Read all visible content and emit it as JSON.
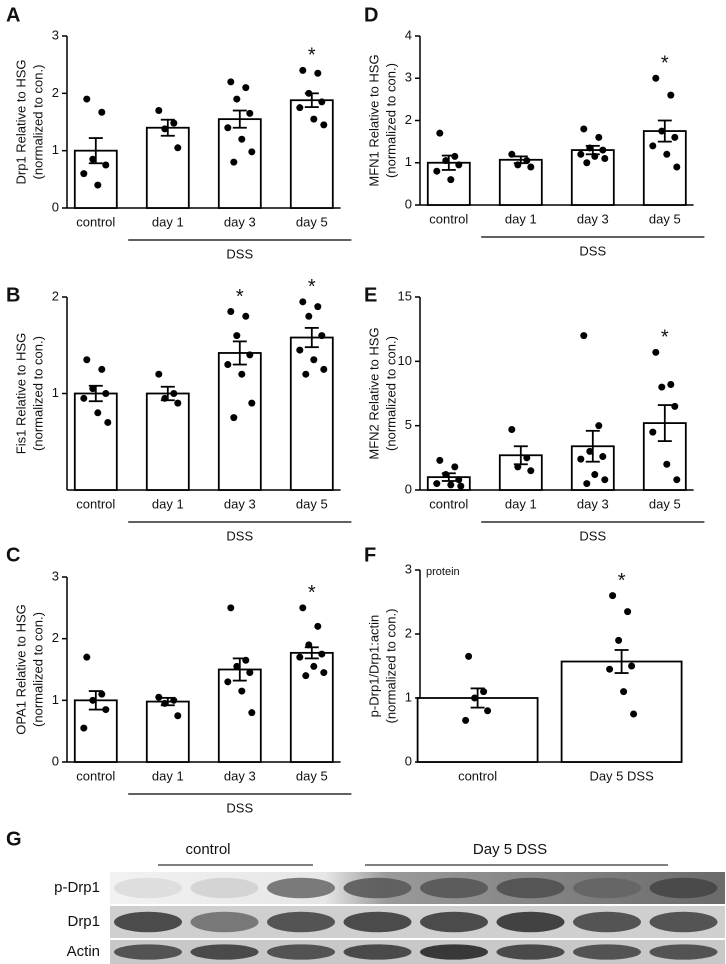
{
  "chart_data": [
    {
      "panel": "A",
      "type": "bar",
      "ylabel": [
        "Drp1 Relative to HSG",
        "(normalized to con.)"
      ],
      "categories": [
        "control",
        "day 1",
        "day 3",
        "day 5"
      ],
      "values": [
        1.0,
        1.4,
        1.55,
        1.88
      ],
      "errors": [
        0.22,
        0.14,
        0.15,
        0.12
      ],
      "points": [
        [
          1.9,
          1.67,
          0.85,
          0.75,
          0.6,
          0.4
        ],
        [
          1.7,
          1.48,
          1.38,
          1.05
        ],
        [
          2.2,
          2.1,
          1.9,
          1.65,
          1.4,
          1.2,
          0.98,
          0.8
        ],
        [
          2.4,
          2.35,
          2.0,
          1.85,
          1.75,
          1.55,
          1.45
        ]
      ],
      "significance": [
        null,
        null,
        null,
        "*"
      ],
      "group_label": "DSS",
      "ylim": [
        0,
        3
      ],
      "yticks": [
        0,
        1,
        2,
        3
      ]
    },
    {
      "panel": "D",
      "type": "bar",
      "ylabel": [
        "MFN1 Relative to HSG",
        "(normalized to con.)"
      ],
      "categories": [
        "control",
        "day 1",
        "day 3",
        "day 5"
      ],
      "values": [
        1.0,
        1.07,
        1.3,
        1.75
      ],
      "errors": [
        0.17,
        0.08,
        0.1,
        0.25
      ],
      "points": [
        [
          1.7,
          1.15,
          1.05,
          0.95,
          0.8,
          0.6
        ],
        [
          1.2,
          1.05,
          0.95,
          0.9
        ],
        [
          1.8,
          1.6,
          1.35,
          1.3,
          1.2,
          1.15,
          1.1,
          1.0
        ],
        [
          3.0,
          2.6,
          1.75,
          1.6,
          1.4,
          1.2,
          0.9
        ]
      ],
      "significance": [
        null,
        null,
        null,
        "*"
      ],
      "group_label": "DSS",
      "ylim": [
        0,
        4
      ],
      "yticks": [
        0,
        1,
        2,
        3,
        4
      ]
    },
    {
      "panel": "B",
      "type": "bar",
      "ylabel": [
        "Fis1 Relative to HSG",
        "(normalized to con.)"
      ],
      "categories": [
        "control",
        "day 1",
        "day 3",
        "day 5"
      ],
      "values": [
        1.0,
        1.0,
        1.42,
        1.58
      ],
      "errors": [
        0.08,
        0.07,
        0.12,
        0.1
      ],
      "points": [
        [
          1.35,
          1.25,
          1.05,
          1.0,
          0.95,
          0.8,
          0.7
        ],
        [
          1.2,
          1.0,
          0.95,
          0.9
        ],
        [
          1.85,
          1.8,
          1.6,
          1.4,
          1.3,
          1.2,
          0.9,
          0.75
        ],
        [
          1.95,
          1.9,
          1.8,
          1.6,
          1.45,
          1.35,
          1.25,
          1.2
        ]
      ],
      "significance": [
        null,
        null,
        "*",
        "*"
      ],
      "group_label": "DSS",
      "ylim": [
        0,
        2
      ],
      "yticks": [
        1,
        2
      ]
    },
    {
      "panel": "E",
      "type": "bar",
      "ylabel": [
        "MFN2 Relative to HSG",
        "(normalized to con.)"
      ],
      "categories": [
        "control",
        "day 1",
        "day 3",
        "day 5"
      ],
      "values": [
        1.0,
        2.7,
        3.4,
        5.2
      ],
      "errors": [
        0.3,
        0.7,
        1.2,
        1.4
      ],
      "points": [
        [
          2.3,
          1.8,
          1.2,
          0.8,
          0.5,
          0.4,
          0.3
        ],
        [
          4.7,
          2.5,
          1.8,
          1.5
        ],
        [
          12.0,
          5.0,
          3.0,
          2.6,
          2.4,
          1.2,
          0.8,
          0.5
        ],
        [
          10.7,
          8.2,
          8.0,
          6.5,
          4.5,
          2.0,
          0.8
        ]
      ],
      "significance": [
        null,
        null,
        null,
        "*"
      ],
      "group_label": "DSS",
      "ylim": [
        0,
        15
      ],
      "yticks": [
        0,
        5,
        10,
        15
      ]
    },
    {
      "panel": "C",
      "type": "bar",
      "ylabel": [
        "OPA1 Relative to HSG",
        "(normalized to con.)"
      ],
      "categories": [
        "control",
        "day 1",
        "day 3",
        "day 5"
      ],
      "values": [
        1.0,
        0.98,
        1.5,
        1.77
      ],
      "errors": [
        0.15,
        0.06,
        0.18,
        0.09
      ],
      "points": [
        [
          1.7,
          1.1,
          1.0,
          0.85,
          0.55
        ],
        [
          1.05,
          1.0,
          0.95,
          0.75
        ],
        [
          2.5,
          1.65,
          1.55,
          1.45,
          1.3,
          1.15,
          0.8
        ],
        [
          2.5,
          2.2,
          1.9,
          1.75,
          1.7,
          1.55,
          1.45,
          1.4
        ]
      ],
      "significance": [
        null,
        null,
        null,
        "*"
      ],
      "group_label": "DSS",
      "ylim": [
        0,
        3
      ],
      "yticks": [
        0,
        1,
        2,
        3
      ]
    },
    {
      "panel": "F",
      "type": "bar",
      "ylabel": [
        "p-Drp1/Drp1:actin",
        "(normalized to con.)"
      ],
      "annotation": "protein",
      "categories": [
        "control",
        "Day 5 DSS"
      ],
      "values": [
        1.0,
        1.57
      ],
      "errors": [
        0.15,
        0.18
      ],
      "points": [
        [
          1.65,
          1.1,
          1.0,
          0.8,
          0.65
        ],
        [
          2.6,
          2.35,
          1.9,
          1.5,
          1.45,
          1.1,
          0.75
        ]
      ],
      "significance": [
        null,
        "*"
      ],
      "ylim": [
        0,
        3
      ],
      "yticks": [
        0,
        1,
        2,
        3
      ]
    }
  ],
  "blot": {
    "panel": "G",
    "groups": [
      "control",
      "Day 5  DSS"
    ],
    "rows": [
      "p-Drp1",
      "Drp1",
      "Actin"
    ]
  }
}
